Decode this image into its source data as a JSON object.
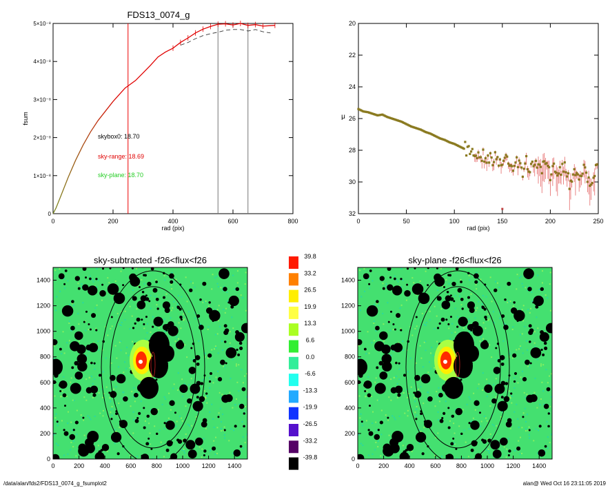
{
  "footer": {
    "path": "/data/alan/fds2/FDS13_0074_g_fsumplot2",
    "stamp": "alan@  Wed Oct 16 23:11:05 2019"
  },
  "colors": {
    "profile_red": "#e00000",
    "profile_green": "#2a9a2a",
    "marker_olive": "#8a7a20",
    "sky_label_red": "#e00000",
    "sky_label_green": "#22cc22",
    "vline_red": "#ee0000",
    "vline_gray": "#777777",
    "map_background": "#44e070",
    "mask_black": "#000000"
  },
  "chart_data": [
    {
      "type": "line",
      "title": "FDS13_0074_g",
      "xlabel": "rad (pix)",
      "ylabel": "fsum",
      "xlim": [
        0,
        800
      ],
      "ylim": [
        0,
        5e-08
      ],
      "xticks": [
        "0",
        "200",
        "400",
        "600",
        "800"
      ],
      "yticks": [
        "0",
        "1×10⁻⁸",
        "2×10⁻⁸",
        "3×10⁻⁸",
        "4×10⁻⁸",
        "5×10⁻⁸"
      ],
      "series": [
        {
          "style": "solid with error bars (green→red)",
          "x": [
            0,
            10,
            25,
            50,
            75,
            100,
            125,
            150,
            200,
            240,
            275,
            300,
            325,
            350,
            375,
            400,
            425,
            450,
            475,
            500,
            525,
            550,
            575,
            600,
            625,
            650,
            675,
            700,
            740
          ],
          "y": [
            0,
            1.5e-09,
            4.5e-09,
            9.5e-09,
            1.4e-08,
            1.8e-08,
            2.15e-08,
            2.45e-08,
            2.95e-08,
            3.3e-08,
            3.5e-08,
            3.7e-08,
            3.9e-08,
            4.12e-08,
            4.25e-08,
            4.35e-08,
            4.5e-08,
            4.62e-08,
            4.75e-08,
            4.85e-08,
            4.92e-08,
            4.98e-08,
            4.99e-08,
            4.96e-08,
            5e-08,
            4.95e-08,
            4.97e-08,
            4.93e-08,
            4.95e-08
          ]
        },
        {
          "style": "dashed",
          "x": [
            425,
            450,
            475,
            500,
            525,
            550,
            575,
            600,
            625,
            650,
            675,
            700,
            725
          ],
          "y": [
            4.43e-08,
            4.5e-08,
            4.6e-08,
            4.68e-08,
            4.73e-08,
            4.77e-08,
            4.82e-08,
            4.84e-08,
            4.84e-08,
            4.8e-08,
            4.84e-08,
            4.78e-08,
            4.75e-08
          ]
        }
      ],
      "vlines": [
        {
          "x": 250,
          "color": "red"
        },
        {
          "x": 550,
          "color": "gray"
        },
        {
          "x": 650,
          "color": "gray"
        }
      ],
      "annotations": [
        {
          "text": "skybox0: 18.70",
          "color": "black"
        },
        {
          "text": "sky-range: 18.69",
          "color": "red"
        },
        {
          "text": "sky-plane: 18.70",
          "color": "green"
        }
      ]
    },
    {
      "type": "scatter",
      "title": "",
      "xlabel": "rad (pix)",
      "ylabel": "μ",
      "xlim": [
        0,
        250
      ],
      "ylim": [
        32,
        20
      ],
      "y_inverted": true,
      "xticks": [
        "0",
        "50",
        "100",
        "150",
        "200",
        "250"
      ],
      "yticks": [
        "20",
        "22",
        "24",
        "26",
        "28",
        "30",
        "32"
      ],
      "series": [
        {
          "x": [
            0,
            5,
            10,
            15,
            20,
            25,
            30,
            35,
            40,
            45,
            50,
            55,
            60,
            65,
            70,
            75,
            80,
            85,
            90,
            95,
            100,
            105,
            110,
            115,
            120,
            125,
            130,
            135,
            140,
            145,
            150,
            155,
            160,
            165,
            170,
            175,
            180,
            185,
            190,
            195,
            200,
            205,
            210,
            215,
            220,
            225,
            230,
            235,
            240,
            245,
            250
          ],
          "y": [
            25.4,
            25.55,
            25.6,
            25.7,
            25.8,
            25.75,
            25.9,
            26.0,
            26.1,
            26.2,
            26.35,
            26.5,
            26.6,
            26.7,
            26.85,
            26.95,
            27.1,
            27.25,
            27.35,
            27.5,
            27.6,
            27.75,
            27.9,
            28.0,
            28.1,
            28.25,
            28.3,
            28.45,
            28.55,
            28.5,
            28.9,
            28.3,
            29.0,
            28.6,
            29.4,
            28.7,
            29.3,
            28.5,
            29.5,
            28.8,
            29.7,
            29.0,
            29.3,
            28.9,
            30.0,
            29.2,
            29.7,
            29.1,
            30.1,
            29.5,
            29.2
          ]
        }
      ]
    },
    {
      "type": "heatmap",
      "title": "sky-subtracted -f26<flux<f26",
      "xlim": [
        0,
        1500
      ],
      "ylim": [
        0,
        1500
      ],
      "xticks": [
        "0",
        "200",
        "400",
        "600",
        "800",
        "1000",
        "1200",
        "1400"
      ],
      "yticks": [
        "0",
        "200",
        "400",
        "600",
        "800",
        "1000",
        "1200",
        "1400"
      ]
    },
    {
      "type": "heatmap",
      "title": "sky-plane -f26<flux<f26",
      "xlim": [
        0,
        1500
      ],
      "ylim": [
        0,
        1500
      ],
      "xticks": [
        "0",
        "200",
        "400",
        "600",
        "800",
        "1000",
        "1200",
        "1400"
      ],
      "yticks": [
        "0",
        "200",
        "400",
        "600",
        "800",
        "1000",
        "1200",
        "1400"
      ]
    }
  ],
  "colorbar": {
    "labels": [
      "39.8",
      "33.2",
      "26.5",
      "19.9",
      "13.3",
      "6.6",
      "0.0",
      "-6.6",
      "-13.3",
      "-19.9",
      "-26.5",
      "-33.2",
      "-39.8"
    ],
    "colors": [
      "#ff1a00",
      "#ff8000",
      "#ffee00",
      "#ffff44",
      "#aaff22",
      "#33ee33",
      "#33ee99",
      "#22ffee",
      "#22aaff",
      "#1133ff",
      "#5511cc",
      "#550066",
      "#000000"
    ]
  }
}
